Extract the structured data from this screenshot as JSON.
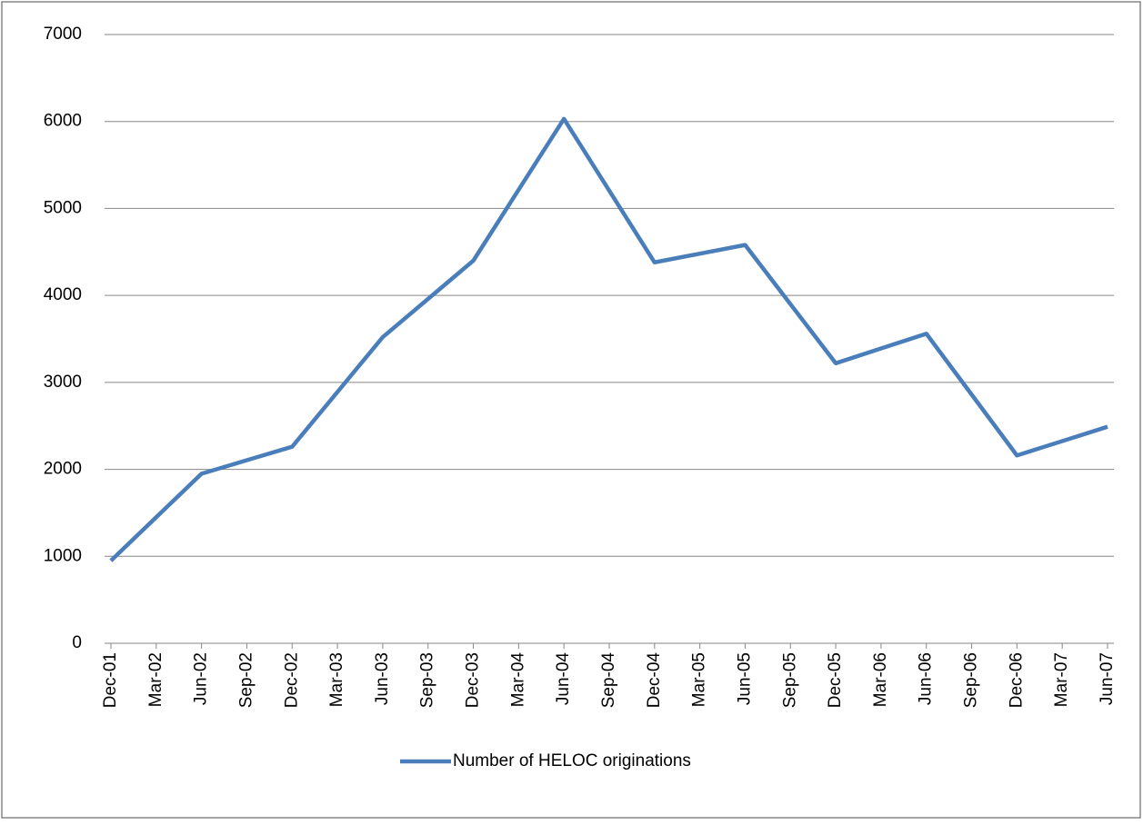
{
  "chart_data": {
    "type": "line",
    "categories": [
      "Dec-01",
      "Mar-02",
      "Jun-02",
      "Sep-02",
      "Dec-02",
      "Mar-03",
      "Jun-03",
      "Sep-03",
      "Dec-03",
      "Mar-04",
      "Jun-04",
      "Sep-04",
      "Dec-04",
      "Mar-05",
      "Jun-05",
      "Sep-05",
      "Dec-05",
      "Mar-06",
      "Jun-06",
      "Sep-06",
      "Dec-06",
      "Mar-07",
      "Jun-07"
    ],
    "series": [
      {
        "name": "Number of HELOC originations",
        "color": "#4a7ebb",
        "values": [
          950,
          1450,
          1950,
          2105,
          2260,
          2890,
          3520,
          3960,
          4400,
          5215,
          6030,
          5205,
          4380,
          4480,
          4580,
          3900,
          3220,
          3390,
          3560,
          2860,
          2160,
          2325,
          2490
        ]
      }
    ],
    "ylim": [
      0,
      7000
    ],
    "yticks": [
      0,
      1000,
      2000,
      3000,
      4000,
      5000,
      6000,
      7000
    ],
    "grid": true,
    "legend": "bottom"
  }
}
